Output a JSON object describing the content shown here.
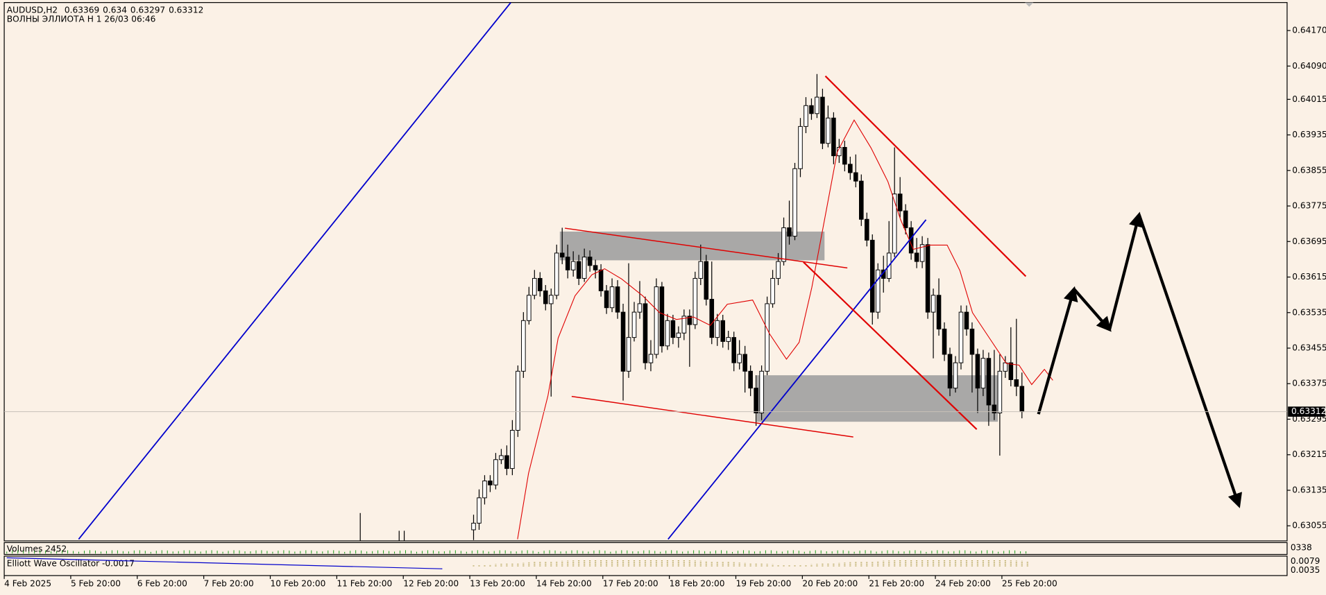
{
  "chart_data": {
    "type": "candlestick",
    "symbol": "AUDUSD,H2",
    "subtitle": "ВОЛНЫ ЭЛЛИОТА H 1 26/03 06:46",
    "up_color": "#ffffff",
    "down_color": "#000000",
    "ylim": [
      0.63021,
      0.64233
    ],
    "yticks": [
      {
        "value": 0.6417,
        "label": "0.64170"
      },
      {
        "value": 0.6409,
        "label": "0.64090"
      },
      {
        "value": 0.64015,
        "label": "0.64015"
      },
      {
        "value": 0.63935,
        "label": "0.63935"
      },
      {
        "value": 0.63855,
        "label": "0.63855"
      },
      {
        "value": 0.63775,
        "label": "0.63775"
      },
      {
        "value": 0.63695,
        "label": "0.63695"
      },
      {
        "value": 0.63615,
        "label": "0.63615"
      },
      {
        "value": 0.63535,
        "label": "0.63535"
      },
      {
        "value": 0.63455,
        "label": "0.63455"
      },
      {
        "value": 0.63375,
        "label": "0.63375"
      },
      {
        "value": 0.63295,
        "label": "0.63295"
      },
      {
        "value": 0.63215,
        "label": "0.63215"
      },
      {
        "value": 0.63135,
        "label": "0.63135"
      },
      {
        "value": 0.63055,
        "label": "0.63055"
      }
    ],
    "x_labels": [
      "4 Feb 2025",
      "5 Feb 20:00",
      "6 Feb 20:00",
      "7 Feb 20:00",
      "10 Feb 20:00",
      "11 Feb 20:00",
      "12 Feb 20:00",
      "13 Feb 20:00",
      "14 Feb 20:00",
      "17 Feb 20:00",
      "18 Feb 20:00",
      "19 Feb 20:00",
      "20 Feb 20:00",
      "21 Feb 20:00",
      "24 Feb 20:00",
      "25 Feb 20:00"
    ],
    "candles": [
      [
        0.63046,
        0.6308,
        0.63023,
        0.63061
      ],
      [
        0.63061,
        0.63137,
        0.63046,
        0.63118
      ],
      [
        0.63118,
        0.63169,
        0.63103,
        0.63156
      ],
      [
        0.63156,
        0.63169,
        0.63131,
        0.63147
      ],
      [
        0.63147,
        0.63219,
        0.63137,
        0.63204
      ],
      [
        0.63204,
        0.63228,
        0.63194,
        0.63213
      ],
      [
        0.63213,
        0.63236,
        0.63169,
        0.63184
      ],
      [
        0.63184,
        0.63293,
        0.63169,
        0.6327
      ],
      [
        0.6327,
        0.63416,
        0.63255,
        0.63403
      ],
      [
        0.63403,
        0.63536,
        0.63388,
        0.63517
      ],
      [
        0.63517,
        0.63593,
        0.63508,
        0.63574
      ],
      [
        0.63574,
        0.63631,
        0.63565,
        0.63612
      ],
      [
        0.63612,
        0.63626,
        0.63571,
        0.63584
      ],
      [
        0.63584,
        0.63597,
        0.6354,
        0.63555
      ],
      [
        0.63555,
        0.63589,
        0.63346,
        0.63574
      ],
      [
        0.63574,
        0.63688,
        0.63565,
        0.63669
      ],
      [
        0.63669,
        0.63726,
        0.63644,
        0.6366
      ],
      [
        0.6366,
        0.63688,
        0.63612,
        0.63631
      ],
      [
        0.63631,
        0.63673,
        0.63616,
        0.6365
      ],
      [
        0.6365,
        0.63665,
        0.63597,
        0.63612
      ],
      [
        0.63612,
        0.63679,
        0.63604,
        0.6366
      ],
      [
        0.6366,
        0.63675,
        0.63627,
        0.63641
      ],
      [
        0.63641,
        0.63654,
        0.63612,
        0.63631
      ],
      [
        0.63631,
        0.63644,
        0.63571,
        0.63584
      ],
      [
        0.63584,
        0.63597,
        0.63532,
        0.63546
      ],
      [
        0.63546,
        0.63612,
        0.63536,
        0.63593
      ],
      [
        0.63593,
        0.63608,
        0.63521,
        0.63536
      ],
      [
        0.63536,
        0.63555,
        0.63337,
        0.63403
      ],
      [
        0.63403,
        0.63646,
        0.63388,
        0.63479
      ],
      [
        0.63479,
        0.63559,
        0.6347,
        0.63536
      ],
      [
        0.63536,
        0.63606,
        0.63521,
        0.63555
      ],
      [
        0.63555,
        0.63571,
        0.63407,
        0.63422
      ],
      [
        0.63422,
        0.63473,
        0.63403,
        0.63441
      ],
      [
        0.63441,
        0.63612,
        0.63432,
        0.63593
      ],
      [
        0.63593,
        0.63604,
        0.63445,
        0.6346
      ],
      [
        0.6346,
        0.63532,
        0.63451,
        0.63517
      ],
      [
        0.63517,
        0.6353,
        0.63464,
        0.63479
      ],
      [
        0.63479,
        0.63504,
        0.63456,
        0.63489
      ],
      [
        0.63489,
        0.63542,
        0.63473,
        0.63527
      ],
      [
        0.63527,
        0.63542,
        0.63413,
        0.63508
      ],
      [
        0.63508,
        0.63627,
        0.63498,
        0.63612
      ],
      [
        0.63612,
        0.63688,
        0.63597,
        0.6365
      ],
      [
        0.6365,
        0.63665,
        0.63551,
        0.63565
      ],
      [
        0.63565,
        0.6365,
        0.63464,
        0.63479
      ],
      [
        0.63479,
        0.63532,
        0.6346,
        0.63517
      ],
      [
        0.63517,
        0.6353,
        0.63456,
        0.6347
      ],
      [
        0.6347,
        0.63494,
        0.63451,
        0.63479
      ],
      [
        0.63479,
        0.63492,
        0.63403,
        0.63422
      ],
      [
        0.63422,
        0.63473,
        0.63407,
        0.63441
      ],
      [
        0.63441,
        0.6346,
        0.63355,
        0.63403
      ],
      [
        0.63403,
        0.63416,
        0.63347,
        0.63365
      ],
      [
        0.63365,
        0.63394,
        0.6328,
        0.63309
      ],
      [
        0.63309,
        0.63416,
        0.63293,
        0.63403
      ],
      [
        0.63403,
        0.63571,
        0.63394,
        0.63555
      ],
      [
        0.63555,
        0.63631,
        0.63546,
        0.63612
      ],
      [
        0.63612,
        0.63669,
        0.63597,
        0.6365
      ],
      [
        0.6365,
        0.63749,
        0.63641,
        0.63726
      ],
      [
        0.63726,
        0.63787,
        0.63688,
        0.63707
      ],
      [
        0.63707,
        0.63872,
        0.63698,
        0.63859
      ],
      [
        0.63859,
        0.63973,
        0.6384,
        0.63954
      ],
      [
        0.63954,
        0.6402,
        0.63939,
        0.64001
      ],
      [
        0.64001,
        0.64017,
        0.63969,
        0.63983
      ],
      [
        0.63983,
        0.64072,
        0.63973,
        0.6402
      ],
      [
        0.6402,
        0.64039,
        0.63903,
        0.63916
      ],
      [
        0.63916,
        0.64001,
        0.63907,
        0.63973
      ],
      [
        0.63973,
        0.63986,
        0.63869,
        0.63888
      ],
      [
        0.63888,
        0.63926,
        0.63872,
        0.63907
      ],
      [
        0.63907,
        0.63922,
        0.63853,
        0.63869
      ],
      [
        0.63869,
        0.63886,
        0.63834,
        0.6385
      ],
      [
        0.6385,
        0.63891,
        0.63817,
        0.63831
      ],
      [
        0.63831,
        0.63846,
        0.6373,
        0.63745
      ],
      [
        0.63745,
        0.6376,
        0.63684,
        0.63698
      ],
      [
        0.63698,
        0.63711,
        0.63508,
        0.63536
      ],
      [
        0.63536,
        0.63646,
        0.63521,
        0.63631
      ],
      [
        0.63631,
        0.63663,
        0.6358,
        0.63612
      ],
      [
        0.63612,
        0.63741,
        0.63604,
        0.63669
      ],
      [
        0.63669,
        0.63907,
        0.6366,
        0.63802
      ],
      [
        0.63802,
        0.6384,
        0.63749,
        0.63764
      ],
      [
        0.63764,
        0.63779,
        0.63711,
        0.63726
      ],
      [
        0.63726,
        0.63741,
        0.63654,
        0.63669
      ],
      [
        0.63669,
        0.63703,
        0.63635,
        0.6365
      ],
      [
        0.6365,
        0.63707,
        0.63635,
        0.63688
      ],
      [
        0.63688,
        0.63703,
        0.63521,
        0.63536
      ],
      [
        0.63536,
        0.63589,
        0.63432,
        0.63574
      ],
      [
        0.63574,
        0.63612,
        0.63483,
        0.63498
      ],
      [
        0.63498,
        0.63513,
        0.63426,
        0.63441
      ],
      [
        0.63441,
        0.63456,
        0.63347,
        0.63365
      ],
      [
        0.63365,
        0.63437,
        0.63355,
        0.63422
      ],
      [
        0.63422,
        0.63551,
        0.63407,
        0.63536
      ],
      [
        0.63536,
        0.63551,
        0.63483,
        0.63498
      ],
      [
        0.63498,
        0.63513,
        0.63355,
        0.63441
      ],
      [
        0.63441,
        0.63454,
        0.63309,
        0.63365
      ],
      [
        0.63365,
        0.63451,
        0.63347,
        0.63432
      ],
      [
        0.63432,
        0.63445,
        0.6328,
        0.63327
      ],
      [
        0.63327,
        0.63451,
        0.63293,
        0.63309
      ],
      [
        0.63309,
        0.63441,
        0.63213,
        0.63403
      ],
      [
        0.63403,
        0.63437,
        0.63388,
        0.63422
      ],
      [
        0.63422,
        0.63502,
        0.63369,
        0.63384
      ],
      [
        0.63384,
        0.63521,
        0.63347,
        0.63369
      ],
      [
        0.63369,
        0.634,
        0.63297,
        0.63312
      ]
    ],
    "panels": [
      {
        "label": "Volumes 2452",
        "ticks": [
          "0338"
        ]
      },
      {
        "label": "Elliott Wave Oscillator -0.0017",
        "ticks": [
          "0.0079",
          "0.0035"
        ]
      }
    ]
  }
}
